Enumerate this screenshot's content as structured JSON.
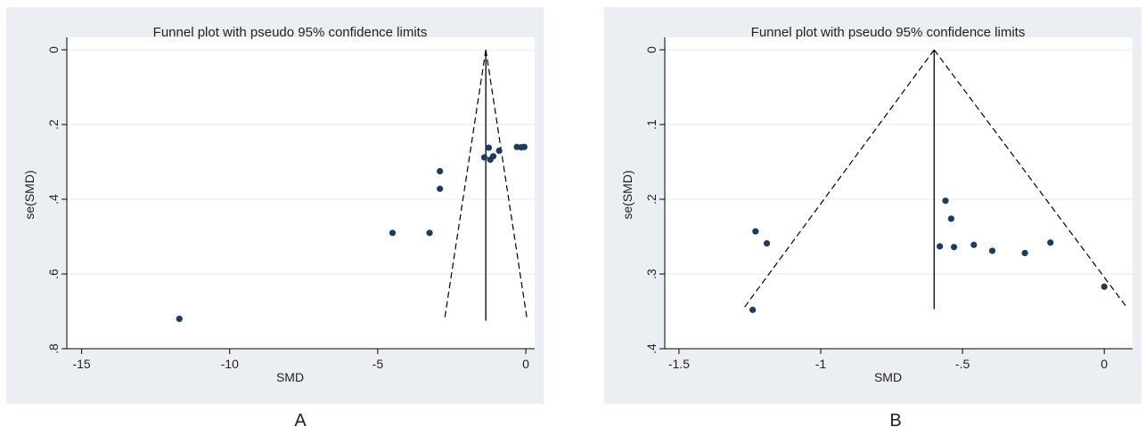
{
  "panels": [
    {
      "letter": "A"
    },
    {
      "letter": "B"
    }
  ],
  "chart_data": [
    {
      "type": "scatter",
      "title": "Funnel plot with pseudo 95% confidence limits",
      "xlabel": "SMD",
      "ylabel": "se(SMD)",
      "xlim": [
        -15.5,
        0.3
      ],
      "ylim": [
        0.8,
        0
      ],
      "y_reversed": true,
      "grid": true,
      "xticks": [
        -15,
        -10,
        -5,
        0
      ],
      "xtick_labels": [
        "-15",
        "-10",
        "-5",
        "0"
      ],
      "yticks": [
        0,
        0.2,
        0.4,
        0.6,
        0.8
      ],
      "ytick_labels": [
        "0",
        ".2",
        ".4",
        ".6",
        ".8"
      ],
      "pooled_effect": -1.35,
      "pooled_line_se": [
        0,
        0.725
      ],
      "confidence_limits": {
        "left": [
          [
            -1.35,
            0
          ],
          [
            -2.75,
            0.725
          ]
        ],
        "right": [
          [
            -1.35,
            0
          ],
          [
            0.05,
            0.725
          ]
        ]
      },
      "points": [
        {
          "x": -11.7,
          "y": 0.72
        },
        {
          "x": -4.5,
          "y": 0.49
        },
        {
          "x": -3.25,
          "y": 0.49
        },
        {
          "x": -2.9,
          "y": 0.325
        },
        {
          "x": -2.9,
          "y": 0.372
        },
        {
          "x": -1.4,
          "y": 0.288
        },
        {
          "x": -1.25,
          "y": 0.262
        },
        {
          "x": -1.2,
          "y": 0.294
        },
        {
          "x": -1.1,
          "y": 0.285
        },
        {
          "x": -0.9,
          "y": 0.27
        },
        {
          "x": -0.3,
          "y": 0.26
        },
        {
          "x": -0.15,
          "y": 0.261
        },
        {
          "x": -0.05,
          "y": 0.26
        }
      ]
    },
    {
      "type": "scatter",
      "title": "Funnel plot with pseudo 95% confidence limits",
      "xlabel": "SMD",
      "ylabel": "se(SMD)",
      "xlim": [
        -1.55,
        0.1
      ],
      "ylim": [
        0.4,
        0
      ],
      "y_reversed": true,
      "grid": true,
      "xticks": [
        -1.5,
        -1,
        -0.5,
        0
      ],
      "xtick_labels": [
        "-1.5",
        "-1",
        "-.5",
        "0"
      ],
      "yticks": [
        0,
        0.1,
        0.2,
        0.3,
        0.4
      ],
      "ytick_labels": [
        "0",
        ".1",
        ".2",
        ".3",
        ".4"
      ],
      "pooled_effect": -0.6,
      "pooled_line_se": [
        0,
        0.347
      ],
      "confidence_limits": {
        "left": [
          [
            -0.6,
            0
          ],
          [
            -1.27,
            0.345
          ]
        ],
        "right": [
          [
            -0.6,
            0
          ],
          [
            0.08,
            0.345
          ]
        ]
      },
      "points": [
        {
          "x": -1.24,
          "y": 0.348
        },
        {
          "x": -1.23,
          "y": 0.243
        },
        {
          "x": -1.19,
          "y": 0.259
        },
        {
          "x": -0.58,
          "y": 0.263
        },
        {
          "x": -0.56,
          "y": 0.202
        },
        {
          "x": -0.54,
          "y": 0.226
        },
        {
          "x": -0.53,
          "y": 0.264
        },
        {
          "x": -0.46,
          "y": 0.261
        },
        {
          "x": -0.395,
          "y": 0.269
        },
        {
          "x": -0.28,
          "y": 0.272
        },
        {
          "x": -0.19,
          "y": 0.258
        },
        {
          "x": 0.0,
          "y": 0.317
        }
      ]
    }
  ]
}
